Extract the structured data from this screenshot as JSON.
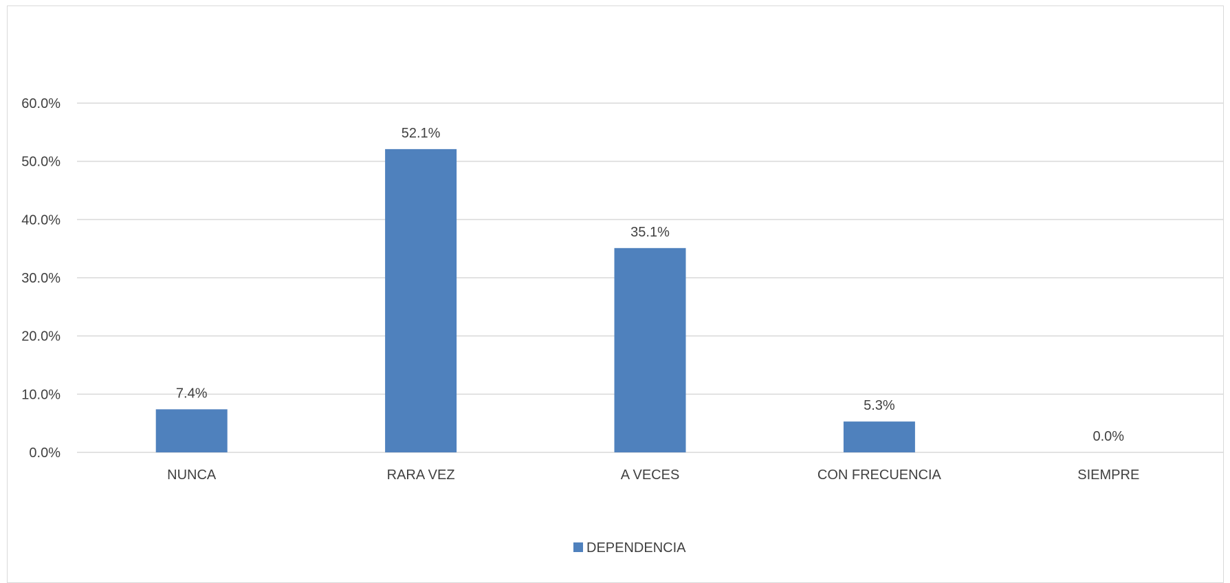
{
  "chart_data": {
    "type": "bar",
    "categories": [
      "NUNCA",
      "RARA VEZ",
      "A VECES",
      "CON FRECUENCIA",
      "SIEMPRE"
    ],
    "series": [
      {
        "name": "DEPENDENCIA",
        "values": [
          7.4,
          52.1,
          35.1,
          5.3,
          0.0
        ],
        "color": "#4f81bd"
      }
    ],
    "data_labels": [
      "7.4%",
      "52.1%",
      "35.1%",
      "5.3%",
      "0.0%"
    ],
    "title": "",
    "xlabel": "",
    "ylabel": "",
    "ylim": [
      0,
      60
    ],
    "yticks": [
      0,
      10,
      20,
      30,
      40,
      50,
      60
    ],
    "ytick_labels": [
      "0.0%",
      "10.0%",
      "20.0%",
      "30.0%",
      "40.0%",
      "50.0%",
      "60.0%"
    ],
    "grid": true,
    "legend_position": "bottom",
    "colors": {
      "bar": "#4f81bd",
      "gridline": "#d9d9d9",
      "text": "#404040"
    }
  }
}
